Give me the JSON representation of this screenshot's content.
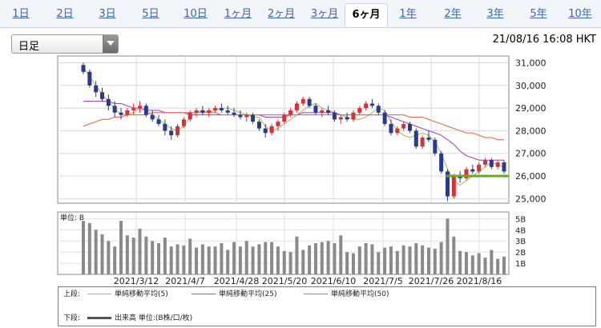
{
  "period_tabs": [
    "1日",
    "2日",
    "3日",
    "5日",
    "10日",
    "1ヶ月",
    "2ヶ月",
    "3ヶ月",
    "6ヶ月",
    "1年",
    "2年",
    "3年",
    "5年",
    "10年"
  ],
  "active_tab": "6ヶ月",
  "interval_select": {
    "selected": "日足"
  },
  "timestamp": "21/08/16 16:08 HKT",
  "price_axis": {
    "ticks": [
      "31,000",
      "30,000",
      "29,000",
      "28,000",
      "27,000",
      "26,000",
      "25,000"
    ]
  },
  "volume_axis": {
    "unit_label": "単位: B",
    "ticks": [
      "5B",
      "4B",
      "3B",
      "2B",
      "1B"
    ]
  },
  "x_axis": {
    "ticks": [
      "2021/3/12",
      "2021/4/7",
      "2021/4/28",
      "2021/5/20",
      "2021/6/10",
      "2021/7/5",
      "2021/7/26",
      "2021/8/16"
    ]
  },
  "legend": {
    "upper_label": "上段:",
    "lower_label": "下段:",
    "items": [
      {
        "label": "単純移動平均(5)",
        "color": "#a8c060"
      },
      {
        "label": "単純移動平均(25)",
        "color": "#b048c8"
      },
      {
        "label": "単純移動平均(50)",
        "color": "#e07050"
      }
    ],
    "volume_label": "出来高 単位:(B株/口/枚)",
    "volume_color": "#555555"
  },
  "colors": {
    "up": "#d8303a",
    "down": "#2a3a8c",
    "support_line": "#66aa22",
    "volume_bar": "#8a8a8a"
  },
  "chart_data": {
    "type": "candlestick",
    "period": "6ヶ月",
    "interval": "日足",
    "ylim": [
      24800,
      31300
    ],
    "volume_ylim": [
      0,
      5.6
    ],
    "support_level": 26000,
    "series": [
      {
        "name": "単純移動平均(5)",
        "values": [
          30800,
          30400,
          30000,
          29600,
          29300,
          29000,
          28700,
          28700,
          28800,
          29000,
          28900,
          28700,
          28500,
          28300,
          28100,
          28000,
          28200,
          28600,
          28800,
          28900,
          28800,
          28900,
          29000,
          29000,
          28900,
          28800,
          28700,
          28600,
          28600,
          28200,
          28000,
          28100,
          28300,
          28500,
          28700,
          28900,
          29100,
          29200,
          29000,
          28900,
          28800,
          28700,
          28600,
          28500,
          28500,
          28600,
          28800,
          29000,
          28900,
          28400,
          28000,
          27800,
          27700,
          27800,
          27900,
          27800,
          27500,
          27000,
          26300,
          25800,
          25600,
          25800,
          26000,
          26200,
          26400,
          26600,
          26500,
          26400
        ]
      },
      {
        "name": "単純移動平均(25)",
        "values": [
          29300,
          29300,
          29300,
          29300,
          29300,
          29200,
          29200,
          29100,
          29000,
          29000,
          28900,
          28900,
          28900,
          28800,
          28800,
          28800,
          28800,
          28700,
          28700,
          28700,
          28700,
          28700,
          28700,
          28700,
          28700,
          28700,
          28700,
          28700,
          28700,
          28600,
          28600,
          28600,
          28600,
          28700,
          28700,
          28800,
          28800,
          28800,
          28800,
          28800,
          28800,
          28700,
          28700,
          28700,
          28700,
          28700,
          28700,
          28700,
          28700,
          28600,
          28500,
          28400,
          28300,
          28200,
          28100,
          28000,
          27900,
          27800,
          27600,
          27400,
          27100,
          26900,
          26800,
          26700,
          26700,
          26700,
          26700,
          26700
        ]
      },
      {
        "name": "単純移動平均(50)",
        "values": [
          28200,
          28300,
          28400,
          28500,
          28500,
          28600,
          28600,
          28700,
          28700,
          28700,
          28700,
          28800,
          28800,
          28800,
          28800,
          28800,
          28800,
          28800,
          28800,
          28800,
          28800,
          28800,
          28700,
          28700,
          28700,
          28700,
          28700,
          28700,
          28700,
          28700,
          28700,
          28700,
          28700,
          28700,
          28700,
          28700,
          28700,
          28700,
          28700,
          28700,
          28700,
          28700,
          28700,
          28700,
          28700,
          28700,
          28700,
          28700,
          28700,
          28700,
          28700,
          28700,
          28600,
          28600,
          28600,
          28500,
          28400,
          28300,
          28200,
          28100,
          28000,
          27900,
          27900,
          27800,
          27700,
          27700,
          27600,
          27600
        ]
      }
    ],
    "candles": [
      [
        30900,
        31000,
        30500,
        30600
      ],
      [
        30600,
        30700,
        29900,
        30000
      ],
      [
        30000,
        30200,
        29500,
        29700
      ],
      [
        29700,
        29900,
        29300,
        29400
      ],
      [
        29400,
        29600,
        28900,
        29100
      ],
      [
        29100,
        29300,
        28600,
        28800
      ],
      [
        28800,
        29000,
        28500,
        28700
      ],
      [
        28700,
        29000,
        28600,
        28900
      ],
      [
        28900,
        29200,
        28700,
        29000
      ],
      [
        29000,
        29300,
        28800,
        29100
      ],
      [
        29100,
        29200,
        28600,
        28700
      ],
      [
        28700,
        28900,
        28400,
        28500
      ],
      [
        28500,
        28700,
        28200,
        28300
      ],
      [
        28300,
        28500,
        27800,
        28000
      ],
      [
        28000,
        28200,
        27600,
        27800
      ],
      [
        27800,
        28300,
        27700,
        28200
      ],
      [
        28200,
        28600,
        28100,
        28500
      ],
      [
        28500,
        28900,
        28400,
        28800
      ],
      [
        28800,
        29000,
        28600,
        28900
      ],
      [
        28900,
        29100,
        28700,
        28800
      ],
      [
        28800,
        29000,
        28600,
        28900
      ],
      [
        28900,
        29100,
        28800,
        29000
      ],
      [
        29000,
        29200,
        28800,
        28900
      ],
      [
        28900,
        29100,
        28700,
        28800
      ],
      [
        28800,
        29000,
        28600,
        28700
      ],
      [
        28700,
        28900,
        28500,
        28600
      ],
      [
        28600,
        28800,
        28400,
        28700
      ],
      [
        28700,
        28800,
        28300,
        28400
      ],
      [
        28400,
        28500,
        28000,
        28100
      ],
      [
        28100,
        28300,
        27700,
        27900
      ],
      [
        27900,
        28300,
        27800,
        28200
      ],
      [
        28200,
        28500,
        28000,
        28400
      ],
      [
        28400,
        28800,
        28300,
        28700
      ],
      [
        28700,
        29000,
        28600,
        28900
      ],
      [
        28900,
        29300,
        28800,
        29200
      ],
      [
        29200,
        29500,
        29100,
        29400
      ],
      [
        29400,
        29500,
        29000,
        29100
      ],
      [
        29100,
        29200,
        28700,
        28800
      ],
      [
        28800,
        29000,
        28600,
        28900
      ],
      [
        28900,
        29100,
        28700,
        28800
      ],
      [
        28800,
        28900,
        28400,
        28500
      ],
      [
        28500,
        28700,
        28300,
        28600
      ],
      [
        28600,
        28800,
        28400,
        28500
      ],
      [
        28500,
        28900,
        28400,
        28800
      ],
      [
        28800,
        29100,
        28700,
        29000
      ],
      [
        29000,
        29300,
        28900,
        29200
      ],
      [
        29200,
        29400,
        29000,
        29100
      ],
      [
        29100,
        29200,
        28700,
        28800
      ],
      [
        28800,
        28900,
        28200,
        28300
      ],
      [
        28300,
        28500,
        27800,
        27900
      ],
      [
        27900,
        28200,
        27800,
        28100
      ],
      [
        28100,
        28400,
        28000,
        28300
      ],
      [
        28300,
        28400,
        27900,
        28000
      ],
      [
        28000,
        28100,
        27200,
        27300
      ],
      [
        27300,
        27800,
        27200,
        27700
      ],
      [
        27700,
        28000,
        27500,
        27600
      ],
      [
        27600,
        27700,
        26900,
        27000
      ],
      [
        27000,
        27100,
        26100,
        26200
      ],
      [
        26200,
        26300,
        24900,
        25100
      ],
      [
        25100,
        26100,
        25000,
        26000
      ],
      [
        26000,
        26200,
        25700,
        25900
      ],
      [
        25900,
        26400,
        25800,
        26300
      ],
      [
        26300,
        26500,
        26100,
        26200
      ],
      [
        26200,
        26600,
        26100,
        26500
      ],
      [
        26500,
        26800,
        26400,
        26700
      ],
      [
        26700,
        26800,
        26300,
        26400
      ],
      [
        26400,
        26700,
        26300,
        26600
      ],
      [
        26600,
        26700,
        26100,
        26200
      ]
    ],
    "volume": [
      4.8,
      4.6,
      4.0,
      3.6,
      3.0,
      2.5,
      4.8,
      3.5,
      3.3,
      4.1,
      3.4,
      3.0,
      2.8,
      3.3,
      2.5,
      2.7,
      2.6,
      3.2,
      2.4,
      2.7,
      2.5,
      2.5,
      2.8,
      2.2,
      2.9,
      2.5,
      3.0,
      2.5,
      2.7,
      2.9,
      2.9,
      2.5,
      2.1,
      2.0,
      3.4,
      2.2,
      2.6,
      2.8,
      2.9,
      3.0,
      2.8,
      3.5,
      2.0,
      1.9,
      2.5,
      2.8,
      2.7,
      2.0,
      2.4,
      2.5,
      2.1,
      2.6,
      2.5,
      2.8,
      2.6,
      2.4,
      2.3,
      2.9,
      5.0,
      3.4,
      2.1,
      2.0,
      1.7,
      1.9,
      1.5,
      2.2,
      1.4,
      1.6
    ]
  }
}
